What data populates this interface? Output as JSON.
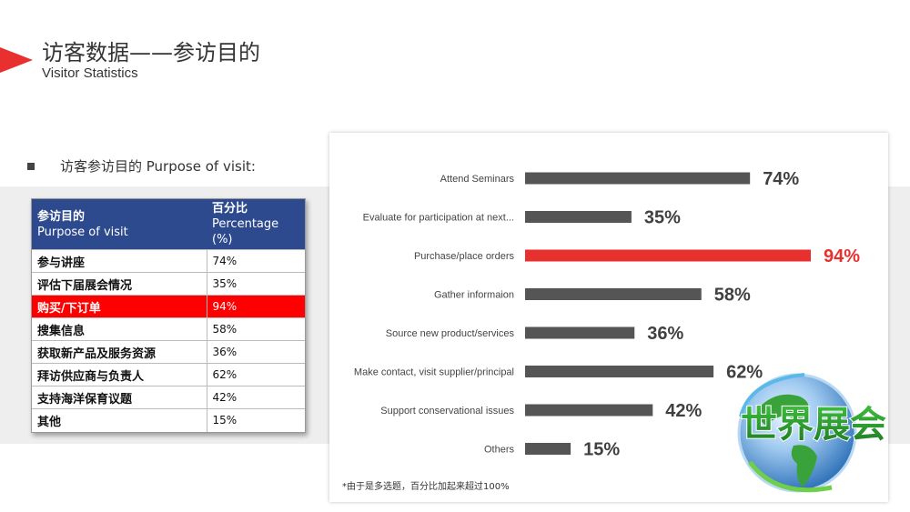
{
  "header": {
    "title_cn": "访客数据——参访目的",
    "title_en": "Visitor Statistics"
  },
  "bullet": "访客参访目的 Purpose of visit:",
  "table": {
    "headers": [
      {
        "cn": "参访目的",
        "en": "Purpose of visit"
      },
      {
        "cn": "百分比",
        "en": "Percentage (%)"
      }
    ],
    "rows": [
      {
        "name": "参与讲座",
        "pct": "74%"
      },
      {
        "name": "评估下届展会情况",
        "pct": "35%"
      },
      {
        "name": "购买/下订单",
        "pct": "94%"
      },
      {
        "name": "搜集信息",
        "pct": "58%"
      },
      {
        "name": "获取新产品及服务资源",
        "pct": "36%"
      },
      {
        "name": "拜访供应商与负责人",
        "pct": "62%"
      },
      {
        "name": "支持海洋保育议题",
        "pct": "42%"
      },
      {
        "name": "其他",
        "pct": "15%"
      }
    ],
    "highlight_row": 2
  },
  "chart_data": {
    "type": "bar",
    "orientation": "horizontal",
    "categories": [
      "Attend Seminars",
      "Evaluate for participation at next...",
      "Purchase/place orders",
      "Gather informaion",
      "Source new product/services",
      "Make contact, visit supplier/principal",
      "Support conservational issues",
      "Others"
    ],
    "values": [
      74,
      35,
      94,
      58,
      36,
      62,
      42,
      15
    ],
    "labels": [
      "74%",
      "35%",
      "94%",
      "58%",
      "36%",
      "62%",
      "42%",
      "15%"
    ],
    "unit": "%",
    "xlim": [
      0,
      100
    ],
    "grid": false,
    "highlight_index": 2,
    "colors": {
      "default": "#555555",
      "highlight": "#e8302f",
      "label_default": "#404040",
      "label_highlight": "#e8302f"
    }
  },
  "footnote": "*由于是多选题，百分比加起来超过100%",
  "logo_text": "世界展会",
  "colors": {
    "accent": "#e8302f",
    "table_header": "#2e4a8e",
    "highlight_row": "#ff0000"
  }
}
